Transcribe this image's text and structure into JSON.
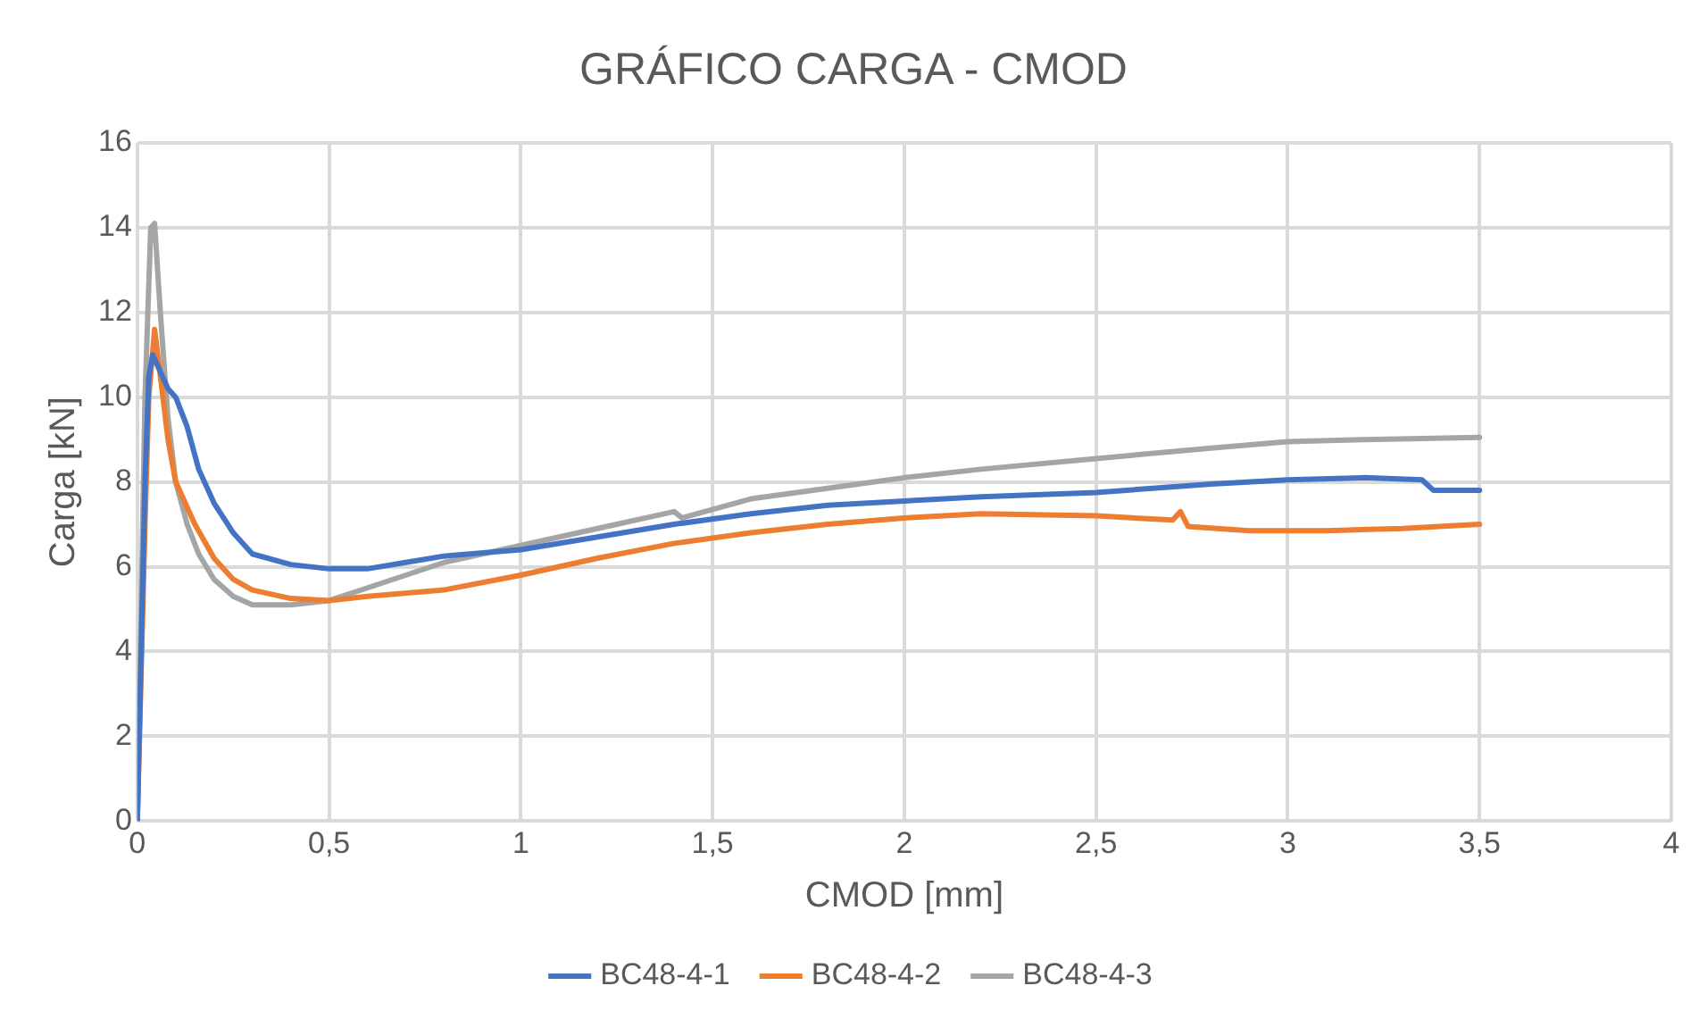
{
  "chart_data": {
    "type": "line",
    "title": "GRÁFICO CARGA - CMOD",
    "xlabel": "CMOD [mm]",
    "ylabel": "Carga [kN]",
    "xlim": [
      0,
      4
    ],
    "xticks": [
      0,
      {
        "value": 0.5,
        "label": "0,5"
      },
      1,
      {
        "value": 1.5,
        "label": "1,5"
      },
      2,
      {
        "value": 2.5,
        "label": "2,5"
      },
      3,
      {
        "value": 3.5,
        "label": "3,5"
      },
      4
    ],
    "ylim": [
      0,
      16
    ],
    "yticks": [
      0,
      2,
      4,
      6,
      8,
      10,
      12,
      14,
      16
    ],
    "grid": true,
    "legend": "bottom",
    "marker": "none",
    "line_style": "solid",
    "series": [
      {
        "name": "BC48-4-1",
        "color": "#4472c4",
        "x": [
          0,
          0.01,
          0.02,
          0.03,
          0.04,
          0.06,
          0.08,
          0.1,
          0.13,
          0.16,
          0.2,
          0.25,
          0.3,
          0.4,
          0.5,
          0.6,
          0.7,
          0.8,
          1,
          1.2,
          1.4,
          1.6,
          1.8,
          2,
          2.2,
          2.5,
          2.8,
          3,
          3.2,
          3.35,
          3.38,
          3.5
        ],
        "values": [
          0,
          4,
          8,
          10.5,
          11,
          10.6,
          10.2,
          10,
          9.3,
          8.3,
          7.5,
          6.8,
          6.3,
          6.05,
          5.95,
          5.95,
          6.1,
          6.25,
          6.4,
          6.7,
          7,
          7.25,
          7.45,
          7.55,
          7.65,
          7.75,
          7.95,
          8.05,
          8.1,
          8.05,
          7.8,
          7.8
        ]
      },
      {
        "name": "BC48-4-2",
        "color": "#ed7d31",
        "x": [
          0,
          0.02,
          0.03,
          0.045,
          0.06,
          0.08,
          0.1,
          0.15,
          0.2,
          0.25,
          0.3,
          0.4,
          0.5,
          0.6,
          0.8,
          1,
          1.2,
          1.4,
          1.6,
          1.8,
          2,
          2.2,
          2.5,
          2.7,
          2.72,
          2.74,
          2.9,
          3.1,
          3.3,
          3.5
        ],
        "values": [
          0,
          7,
          10,
          11.6,
          10.5,
          9,
          8,
          7,
          6.2,
          5.7,
          5.45,
          5.25,
          5.2,
          5.3,
          5.45,
          5.8,
          6.2,
          6.55,
          6.8,
          7,
          7.15,
          7.25,
          7.2,
          7.1,
          7.3,
          6.95,
          6.85,
          6.85,
          6.9,
          7
        ]
      },
      {
        "name": "BC48-4-3",
        "color": "#a5a5a5",
        "x": [
          0,
          0.01,
          0.02,
          0.035,
          0.045,
          0.06,
          0.08,
          0.1,
          0.13,
          0.16,
          0.2,
          0.25,
          0.3,
          0.4,
          0.5,
          0.6,
          0.8,
          1,
          1.2,
          1.4,
          1.42,
          1.6,
          1.8,
          2,
          2.2,
          2.5,
          2.8,
          3,
          3.2,
          3.5
        ],
        "values": [
          0,
          5,
          10,
          14,
          14.1,
          12,
          9.5,
          8,
          7,
          6.3,
          5.7,
          5.3,
          5.1,
          5.1,
          5.2,
          5.5,
          6.1,
          6.5,
          6.9,
          7.3,
          7.15,
          7.6,
          7.85,
          8.1,
          8.3,
          8.55,
          8.8,
          8.95,
          9,
          9.05
        ]
      }
    ]
  }
}
